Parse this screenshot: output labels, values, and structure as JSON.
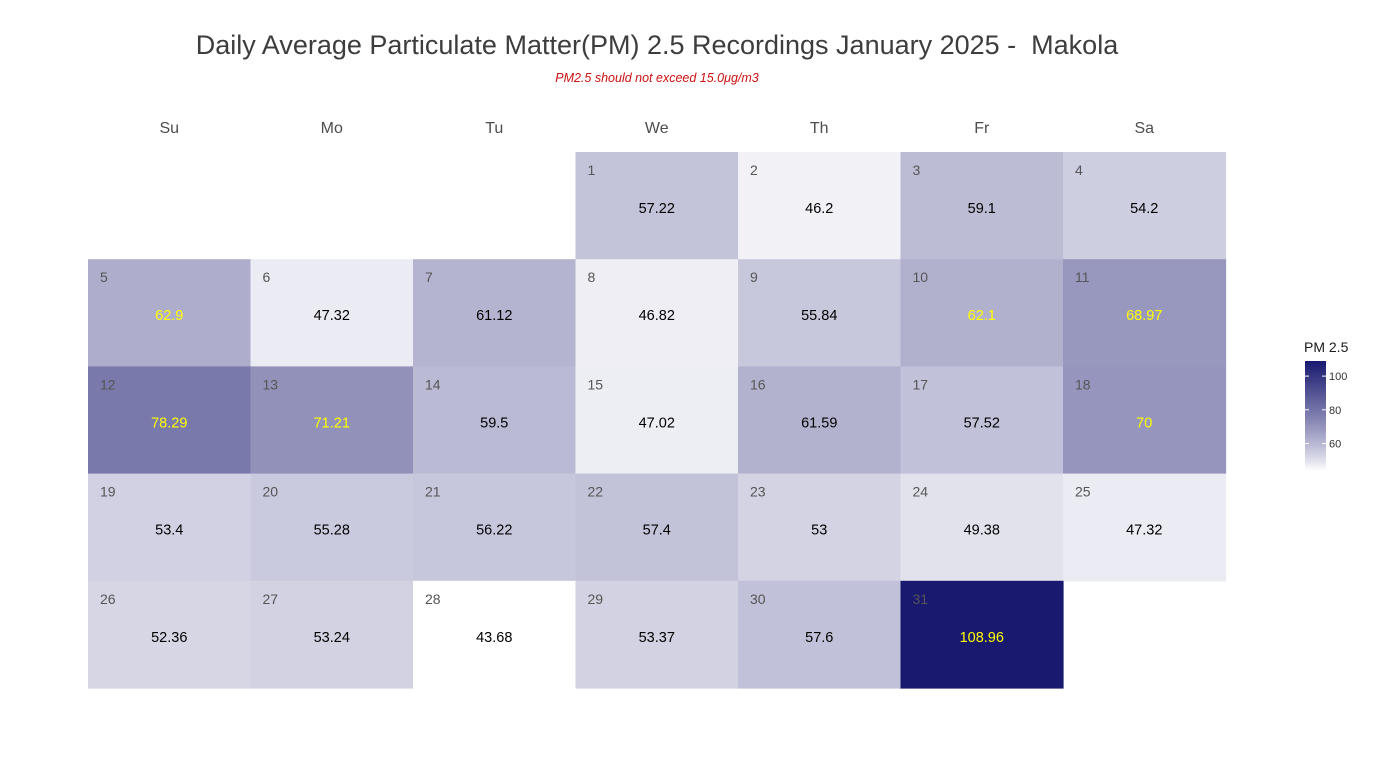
{
  "chart_data": {
    "type": "heatmap",
    "title": "Daily Average Particulate Matter(PM) 2.5 Recordings January 2025 -  Makola",
    "subtitle": "PM2.5 should not exceed 15.0μg/m3",
    "weekdays": [
      "Su",
      "Mo",
      "Tu",
      "We",
      "Th",
      "Fr",
      "Sa"
    ],
    "month_start_weekday": 3,
    "days": [
      1,
      2,
      3,
      4,
      5,
      6,
      7,
      8,
      9,
      10,
      11,
      12,
      13,
      14,
      15,
      16,
      17,
      18,
      19,
      20,
      21,
      22,
      23,
      24,
      25,
      26,
      27,
      28,
      29,
      30,
      31
    ],
    "values": [
      57.22,
      46.2,
      59.1,
      54.2,
      62.9,
      47.32,
      61.12,
      46.82,
      55.84,
      62.1,
      68.97,
      78.29,
      71.21,
      59.5,
      47.02,
      61.59,
      57.52,
      70,
      53.4,
      55.28,
      56.22,
      57.4,
      53,
      49.38,
      47.32,
      52.36,
      53.24,
      43.68,
      53.37,
      57.6,
      108.96
    ],
    "value_labels": [
      "57.22",
      "46.2",
      "59.1",
      "54.2",
      "62.9",
      "47.32",
      "61.12",
      "46.82",
      "55.84",
      "62.1",
      "68.97",
      "78.29",
      "71.21",
      "59.5",
      "47.02",
      "61.59",
      "57.52",
      "70",
      "53.4",
      "55.28",
      "56.22",
      "57.4",
      "53",
      "49.38",
      "47.32",
      "52.36",
      "53.24",
      "43.68",
      "53.37",
      "57.6",
      "108.96"
    ],
    "highlight_threshold": 62,
    "color_scale": {
      "low": "#ffffff",
      "high": "#191970",
      "min": 43.68,
      "max": 108.96
    },
    "label_colors": {
      "normal": "#000000",
      "highlight": "#ffff00"
    },
    "legend": {
      "title": "PM 2.5",
      "ticks": [
        60,
        80,
        100
      ],
      "placement": "right"
    }
  }
}
